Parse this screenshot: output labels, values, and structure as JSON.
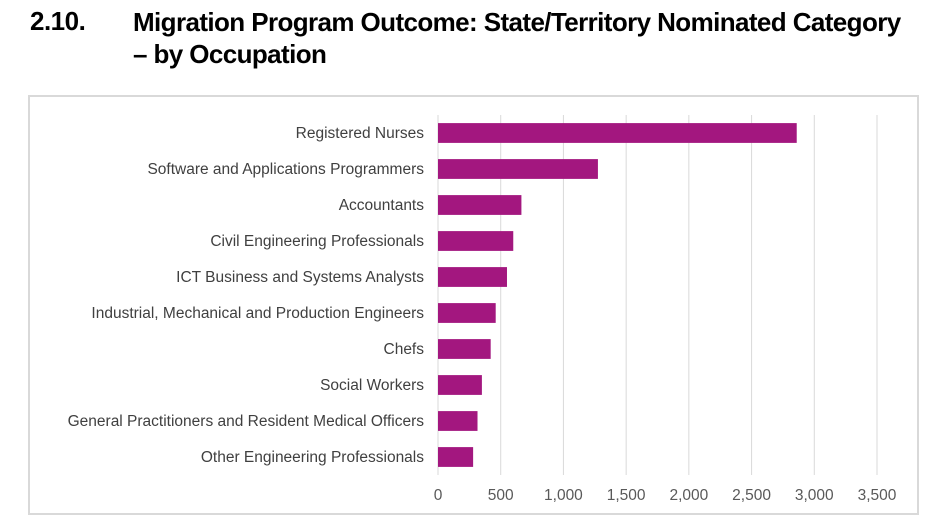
{
  "header": {
    "number": "2.10.",
    "title": "Migration Program Outcome: State/Territory Nominated Category – by Occupation"
  },
  "colors": {
    "bar": "#a3177f",
    "grid": "#d9d9d9",
    "frame": "#d9d9d9"
  },
  "chart_data": {
    "type": "bar",
    "orientation": "horizontal",
    "title": "",
    "xlabel": "",
    "ylabel": "",
    "categories": [
      "Registered Nurses",
      "Software and Applications Programmers",
      "Accountants",
      "Civil Engineering Professionals",
      "ICT Business and Systems Analysts",
      "Industrial, Mechanical and Production Engineers",
      "Chefs",
      "Social Workers",
      "General Practitioners and Resident Medical Officers",
      "Other Engineering Professionals"
    ],
    "values": [
      2860,
      1275,
      665,
      600,
      550,
      460,
      420,
      350,
      315,
      280
    ],
    "xlim": [
      0,
      3500
    ],
    "ticks": [
      0,
      500,
      1000,
      1500,
      2000,
      2500,
      3000,
      3500
    ],
    "tick_labels": [
      "0",
      "500",
      "1,000",
      "1,500",
      "2,000",
      "2,500",
      "3,000",
      "3,500"
    ],
    "grid": true
  }
}
